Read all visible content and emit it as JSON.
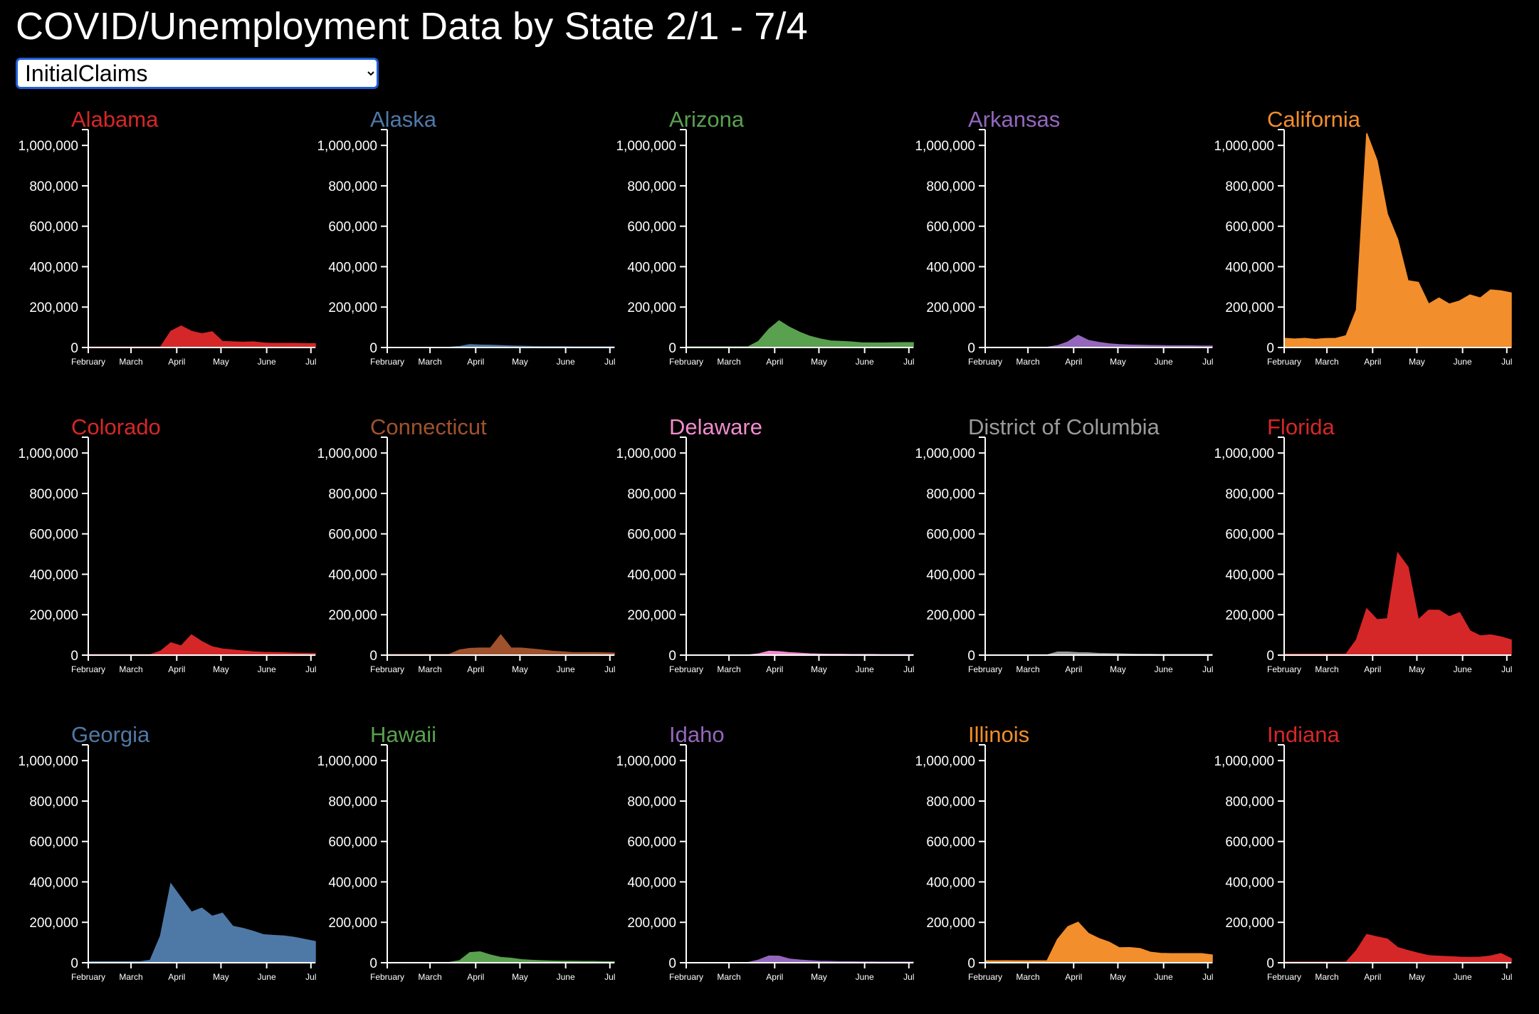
{
  "title": "COVID/Unemployment Data by State 2/1 - 7/4",
  "metric_select": {
    "selected": "InitialClaims"
  },
  "chart_data": {
    "type": "area",
    "small_multiples": true,
    "metric": "InitialClaims",
    "x": [
      "2020-02-01",
      "2020-02-08",
      "2020-02-15",
      "2020-02-22",
      "2020-02-29",
      "2020-03-07",
      "2020-03-14",
      "2020-03-21",
      "2020-03-28",
      "2020-04-04",
      "2020-04-11",
      "2020-04-18",
      "2020-04-25",
      "2020-05-02",
      "2020-05-09",
      "2020-05-16",
      "2020-05-23",
      "2020-05-30",
      "2020-06-06",
      "2020-06-13",
      "2020-06-20",
      "2020-06-27",
      "2020-07-04"
    ],
    "x_ticks": [
      "February",
      "March",
      "April",
      "May",
      "June",
      "Jul"
    ],
    "ylim": [
      0,
      1050000
    ],
    "y_ticks": [
      "0",
      "200,000",
      "400,000",
      "600,000",
      "800,000",
      "1,000,000"
    ],
    "grid": false,
    "series": [
      {
        "name": "Alabama",
        "color": "#d62728",
        "values": [
          2000,
          2000,
          2000,
          2000,
          2000,
          2000,
          2000,
          2000,
          80000,
          106000,
          80000,
          68000,
          78000,
          30000,
          28000,
          26000,
          28000,
          22000,
          20000,
          20000,
          20000,
          19000,
          19000
        ]
      },
      {
        "name": "Alaska",
        "color": "#4e79a7",
        "values": [
          1000,
          1000,
          1000,
          1000,
          1000,
          1000,
          1000,
          5000,
          14000,
          12000,
          11000,
          9000,
          7000,
          6000,
          5000,
          4000,
          4000,
          4000,
          3000,
          3000,
          3000,
          3000,
          3000
        ]
      },
      {
        "name": "Arizona",
        "color": "#59a14f",
        "values": [
          3000,
          3000,
          3000,
          3000,
          3000,
          3000,
          3000,
          30000,
          90000,
          132000,
          100000,
          75000,
          55000,
          42000,
          32000,
          30000,
          27000,
          23000,
          22000,
          22000,
          23000,
          24000,
          24000
        ]
      },
      {
        "name": "Arkansas",
        "color": "#9467bd",
        "values": [
          1500,
          1500,
          1500,
          1500,
          1500,
          1500,
          1500,
          9000,
          27000,
          60000,
          35000,
          25000,
          18000,
          14000,
          12000,
          11000,
          10000,
          9000,
          8000,
          8000,
          8000,
          7000,
          7000
        ]
      },
      {
        "name": "California",
        "color": "#f28e2b",
        "values": [
          45000,
          42000,
          45000,
          40000,
          44000,
          45000,
          58000,
          186000,
          1060000,
          925000,
          660000,
          535000,
          330000,
          322000,
          215000,
          245000,
          215000,
          230000,
          260000,
          245000,
          285000,
          280000,
          270000
        ]
      },
      {
        "name": "Colorado",
        "color": "#d62728",
        "values": [
          2000,
          2000,
          2000,
          2000,
          2000,
          2000,
          2000,
          19000,
          61000,
          45000,
          100000,
          67000,
          41000,
          30000,
          25000,
          20000,
          16000,
          13000,
          12000,
          11000,
          9000,
          8000,
          7000
        ]
      },
      {
        "name": "Connecticut",
        "color": "#a0522d",
        "values": [
          3000,
          3000,
          3000,
          3000,
          3000,
          3000,
          3000,
          25000,
          33000,
          35000,
          35000,
          100000,
          35000,
          35000,
          30000,
          25000,
          19000,
          16000,
          12000,
          12000,
          12000,
          11000,
          10000
        ]
      },
      {
        "name": "Delaware",
        "color": "#f28cce",
        "values": [
          500,
          500,
          500,
          500,
          500,
          500,
          500,
          6000,
          19000,
          17000,
          12000,
          9000,
          6000,
          5000,
          4000,
          4000,
          3000,
          3000,
          3000,
          2000,
          2000,
          2000,
          2000
        ]
      },
      {
        "name": "District of Columbia",
        "color": "#9b9b9b",
        "values": [
          500,
          500,
          500,
          500,
          500,
          500,
          500,
          15000,
          15000,
          12000,
          11000,
          8000,
          7000,
          6000,
          5000,
          4000,
          4000,
          3000,
          3000,
          3000,
          3000,
          3000,
          3000
        ]
      },
      {
        "name": "Florida",
        "color": "#d62728",
        "values": [
          5000,
          5000,
          5000,
          5000,
          5000,
          5000,
          5000,
          75000,
          229000,
          175000,
          180000,
          505000,
          435000,
          175000,
          222000,
          222000,
          190000,
          210000,
          120000,
          95000,
          100000,
          90000,
          75000
        ]
      },
      {
        "name": "Georgia",
        "color": "#4e79a7",
        "values": [
          5000,
          5000,
          5000,
          5000,
          5000,
          5000,
          12000,
          133000,
          390000,
          320000,
          250000,
          270000,
          230000,
          245000,
          180000,
          170000,
          155000,
          138000,
          135000,
          132000,
          125000,
          115000,
          105000
        ]
      },
      {
        "name": "Hawaii",
        "color": "#59a14f",
        "values": [
          1500,
          1500,
          1500,
          1500,
          1500,
          1500,
          1500,
          10000,
          50000,
          54000,
          38000,
          26000,
          22000,
          15000,
          12000,
          10000,
          8000,
          7000,
          7000,
          6000,
          6000,
          5000,
          5000
        ]
      },
      {
        "name": "Idaho",
        "color": "#9467bd",
        "values": [
          1000,
          1000,
          1000,
          1000,
          1000,
          1000,
          1000,
          13000,
          33000,
          32000,
          18000,
          13000,
          10000,
          7000,
          6000,
          5000,
          5000,
          4000,
          4000,
          3000,
          3000,
          3000,
          3000
        ]
      },
      {
        "name": "Illinois",
        "color": "#f28e2b",
        "values": [
          10000,
          9000,
          10000,
          9000,
          9000,
          9000,
          10000,
          115000,
          178000,
          200000,
          145000,
          120000,
          102000,
          74000,
          75000,
          70000,
          52000,
          46000,
          45000,
          45000,
          45000,
          45000,
          38000
        ]
      },
      {
        "name": "Indiana",
        "color": "#d62728",
        "values": [
          3000,
          3000,
          3000,
          3000,
          3000,
          3000,
          3000,
          60000,
          140000,
          128000,
          117000,
          75000,
          60000,
          47000,
          35000,
          32000,
          30000,
          27000,
          26000,
          27000,
          33000,
          45000,
          20000
        ]
      }
    ]
  }
}
